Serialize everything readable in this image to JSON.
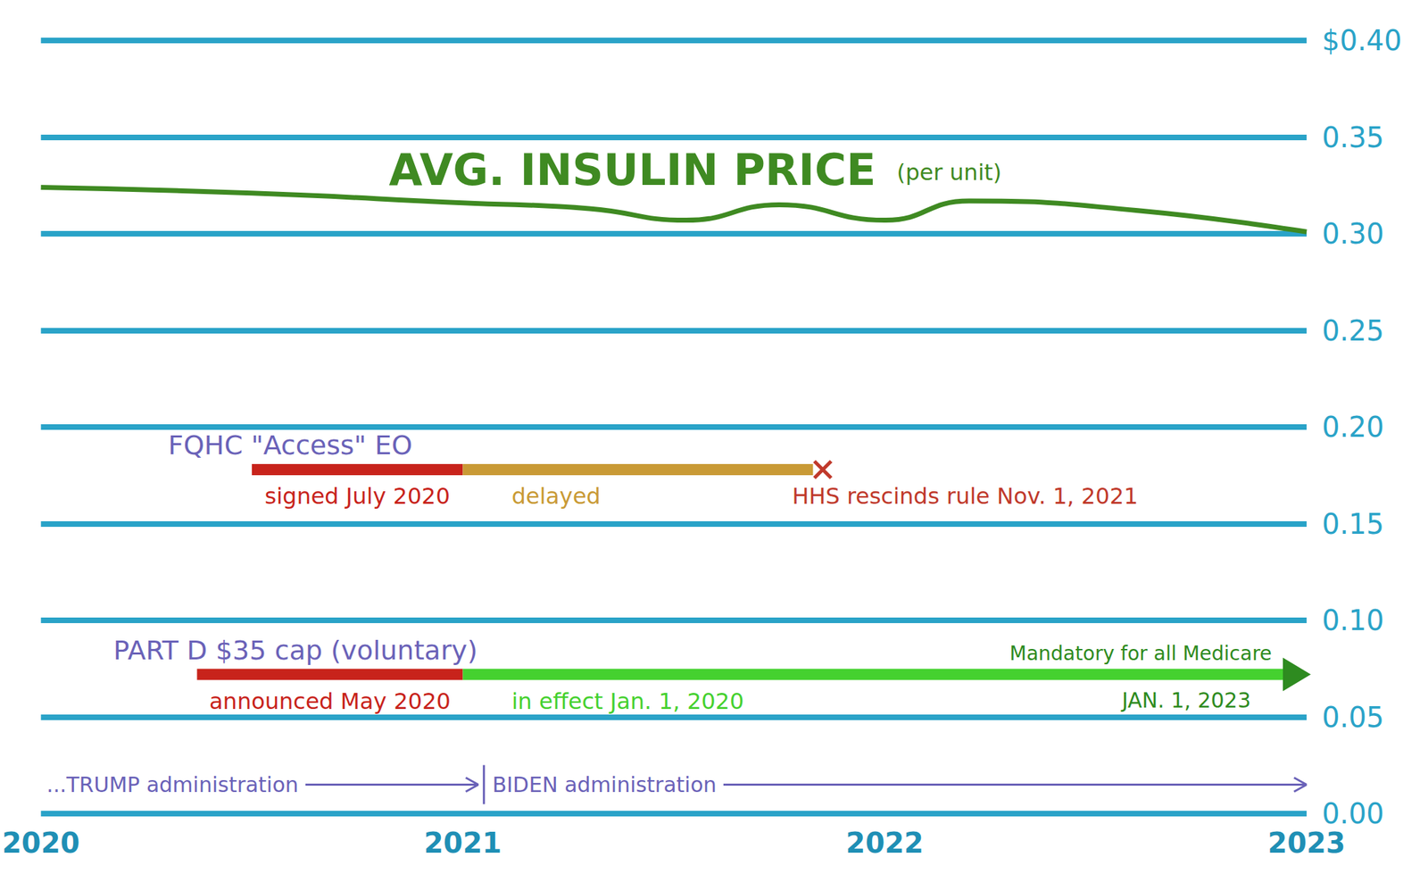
{
  "chart_data": {
    "type": "line",
    "title": "AVG. INSULIN PRICE",
    "subtitle": "(per unit)",
    "color": "#3f8a22",
    "x": [
      2020,
      2020.5,
      2021,
      2021.3,
      2021.53,
      2021.75,
      2022,
      2022.2,
      2022.6,
      2023
    ],
    "values": [
      0.324,
      0.321,
      0.316,
      0.313,
      0.307,
      0.315,
      0.307,
      0.317,
      0.312,
      0.301
    ],
    "xlim": [
      2020,
      2023
    ],
    "xticks": [
      2020,
      2021,
      2022,
      2023
    ],
    "ylim": [
      0,
      0.4
    ],
    "yticks": [
      {
        "value": 0,
        "label": "0.00"
      },
      {
        "value": 0.05,
        "label": "0.05"
      },
      {
        "value": 0.1,
        "label": "0.10"
      },
      {
        "value": 0.15,
        "label": "0.15"
      },
      {
        "value": 0.2,
        "label": "0.20"
      },
      {
        "value": 0.25,
        "label": "0.25"
      },
      {
        "value": 0.3,
        "label": "0.30"
      },
      {
        "value": 0.35,
        "label": "0.35"
      },
      {
        "value": 0.4,
        "label": "$0.40"
      }
    ],
    "grid": true,
    "annotations": [
      {
        "label": "FQHC \"Access\" EO",
        "color": "#6a62b8",
        "marker": "x",
        "segments": [
          {
            "start": 2020.5,
            "end": 2021.0,
            "color": "#c8231b",
            "text": "signed July 2020"
          },
          {
            "start": 2021.0,
            "end": 2021.83,
            "color": "#c99a35",
            "text": "delayed"
          }
        ],
        "end_notes": [
          {
            "text": "HHS rescinds rule Nov. 1, 2021",
            "color": "#c0392b"
          }
        ]
      },
      {
        "label": "PART D $35 cap (voluntary)",
        "color": "#6a62b8",
        "marker": "arrow",
        "segments": [
          {
            "start": 2020.37,
            "end": 2021.0,
            "color": "#c8231b",
            "text": "announced May 2020"
          },
          {
            "start": 2021.0,
            "end": 2023.0,
            "color": "#45d12f",
            "text": "in effect Jan. 1, 2020"
          }
        ],
        "end_notes": [
          {
            "text": "Mandatory for all Medicare",
            "color": "#2e8b20"
          },
          {
            "text": "JAN. 1, 2023",
            "color": "#2e8b20"
          }
        ]
      }
    ],
    "administrations": [
      {
        "label": "...TRUMP administration",
        "start": 2020,
        "end": 2021.05,
        "color": "#6a62b8"
      },
      {
        "label": "BIDEN administration",
        "start": 2021.05,
        "end": 2023,
        "color": "#6a62b8"
      }
    ]
  }
}
